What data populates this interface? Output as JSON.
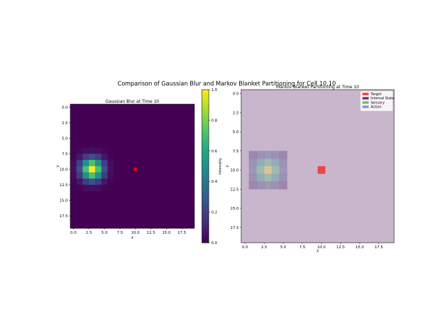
{
  "figure": {
    "suptitle": "Comparison of Gaussian Blur and Markov Blanket Partitioning for Cell 10,10"
  },
  "chart_data": [
    {
      "type": "heatmap",
      "title": "Gaussian Blur at Time 10",
      "xlabel": "x",
      "ylabel": "y",
      "grid_size": 20,
      "colormap": "viridis",
      "vmin": 0.0,
      "vmax": 1.0,
      "blur_center": [
        3,
        10
      ],
      "blur_sigma": 1.2,
      "target_cell": [
        10,
        10
      ],
      "target_color": "#ff0000",
      "xticks": [
        "0.0",
        "2.5",
        "5.0",
        "7.5",
        "10.0",
        "12.5",
        "15.0",
        "17.5"
      ],
      "yticks": [
        "0.0",
        "2.5",
        "5.0",
        "7.5",
        "10.0",
        "12.5",
        "15.0",
        "17.5"
      ],
      "colorbar": {
        "label": "Intensity",
        "ticks": [
          "0.0",
          "0.2",
          "0.4",
          "0.6",
          "0.8",
          "1.0"
        ]
      }
    },
    {
      "type": "heatmap",
      "title": "Markov Blanket Partitioning at Time 10",
      "xlabel": "x",
      "ylabel": "y",
      "grid_size": 20,
      "background_color": "#c8b6cc",
      "target_cell": [
        10,
        10
      ],
      "xticks": [
        "0.0",
        "2.5",
        "5.0",
        "7.5",
        "10.0",
        "12.5",
        "15.0",
        "17.5"
      ],
      "yticks": [
        "0.0",
        "2.5",
        "5.0",
        "7.5",
        "10.0",
        "12.5",
        "15.0",
        "17.5"
      ],
      "legend_position": "top-right",
      "legend": [
        {
          "label": "Target",
          "color": "#e8474a"
        },
        {
          "label": "Internal State",
          "color": "#7b2d7e"
        },
        {
          "label": "Sensory",
          "color": "#5cc95c"
        },
        {
          "label": "Action",
          "color": "#8e8ef0"
        }
      ]
    }
  ]
}
